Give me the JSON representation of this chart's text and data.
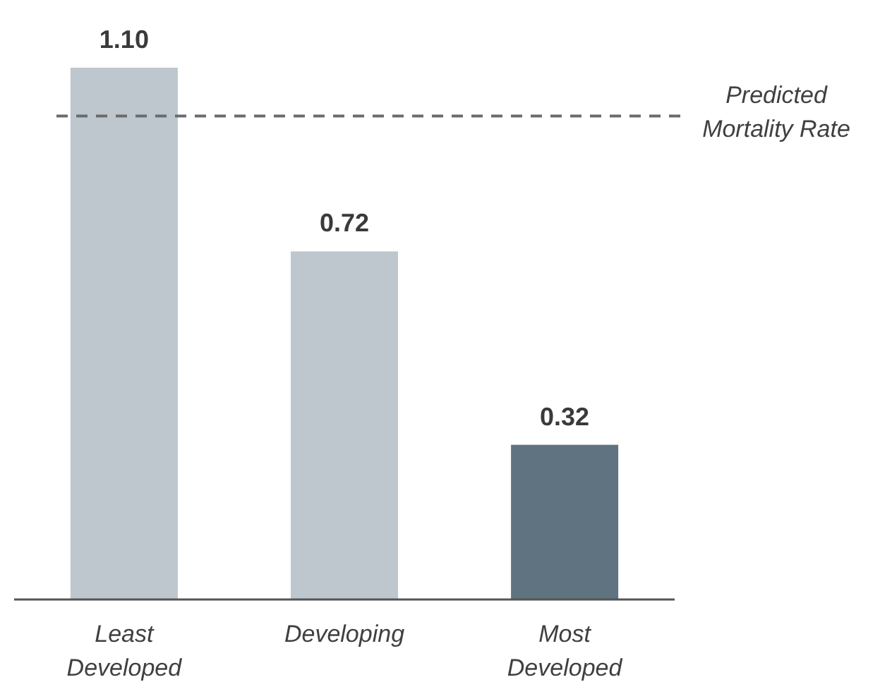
{
  "chart_data": {
    "type": "bar",
    "categories": [
      "Least Developed",
      "Developing",
      "Most Developed"
    ],
    "values": [
      1.1,
      0.72,
      0.32
    ],
    "colors": [
      "#bdc7cd",
      "#bdc7cd",
      "#5f7480"
    ],
    "value_labels": [
      "1.10",
      "0.72",
      "0.32"
    ],
    "ref_lines": [
      {
        "axis": "y",
        "value": 1.0,
        "label": "Predicted Mortality Rate",
        "color": "#6b6b6b",
        "line_style": "dashed"
      }
    ]
  }
}
